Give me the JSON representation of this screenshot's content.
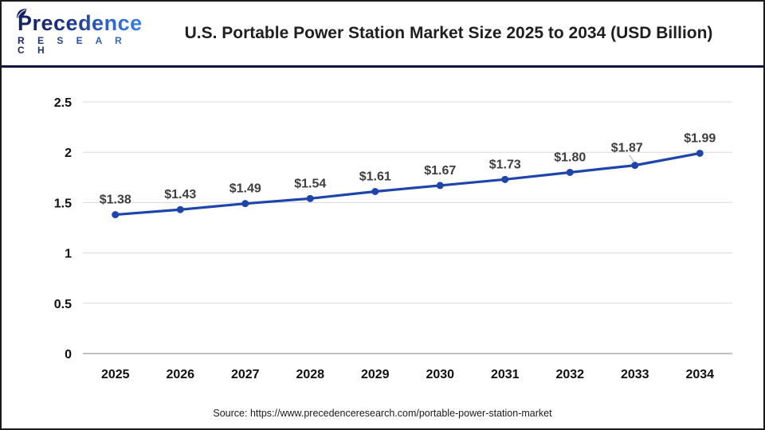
{
  "header": {
    "logo": {
      "word": "Precedence",
      "subtitle": "R E S E A R C H"
    },
    "title": "U.S. Portable Power Station Market Size 2025 to 2034 (USD Billion)"
  },
  "footer": {
    "source": "Source: https://www.precedenceresearch.com/portable-power-station-market"
  },
  "chart_data": {
    "type": "line",
    "title": "U.S. Portable Power Station Market Size 2025 to 2034 (USD Billion)",
    "categories": [
      "2025",
      "2026",
      "2027",
      "2028",
      "2029",
      "2030",
      "2031",
      "2032",
      "2033",
      "2034"
    ],
    "values": [
      1.38,
      1.43,
      1.49,
      1.54,
      1.61,
      1.67,
      1.73,
      1.8,
      1.87,
      1.99
    ],
    "point_labels": [
      "$1.38",
      "$1.43",
      "$1.49",
      "$1.54",
      "$1.61",
      "$1.67",
      "$1.73",
      "$1.80",
      "$1.87",
      "$1.99"
    ],
    "xlabel": "",
    "ylabel": "",
    "ylim": [
      0,
      2.5
    ],
    "yticks": [
      0,
      0.5,
      1,
      1.5,
      2,
      2.5
    ],
    "ytick_labels": [
      "0",
      "0.5",
      "1",
      "1.5",
      "2",
      "2.5"
    ],
    "grid": true,
    "legend": false,
    "colors": {
      "line": "#1f45ab",
      "marker": "#1f45ab",
      "data_label": "#3d3d3d",
      "axis_label": "#0f0f0f",
      "gridline": "#dadada",
      "zero_axis": "#bfbfbf",
      "leader_line": "#a6a6a6"
    }
  }
}
